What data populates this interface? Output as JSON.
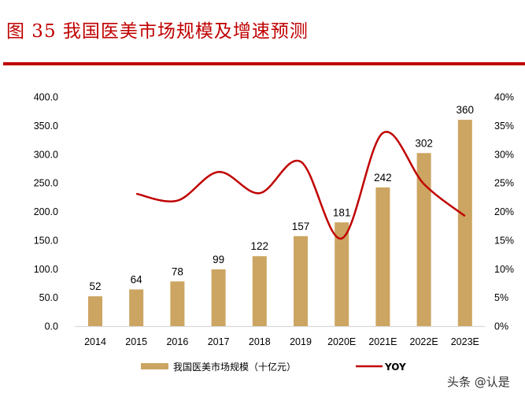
{
  "title": "图 35  我国医美市场规模及增速预测",
  "watermark": "头条 @认是",
  "chart_data": {
    "type": "bar+line",
    "categories": [
      "2014",
      "2015",
      "2016",
      "2017",
      "2018",
      "2019",
      "2020E",
      "2021E",
      "2022E",
      "2023E"
    ],
    "series": [
      {
        "name": "我国医美市场规模（十亿元）",
        "type": "bar",
        "axis": "left",
        "color": "#cca562",
        "values": [
          52,
          64,
          78,
          99,
          122,
          157,
          181,
          242,
          302,
          360
        ],
        "labels": [
          "52",
          "64",
          "78",
          "99",
          "122",
          "157",
          "181",
          "242",
          "302",
          "360"
        ]
      },
      {
        "name": "YOY",
        "type": "line",
        "axis": "right",
        "color": "#c00000",
        "values": [
          null,
          23.1,
          21.9,
          26.9,
          23.2,
          28.7,
          15.3,
          33.7,
          24.8,
          19.2
        ]
      }
    ],
    "left_axis": {
      "range": [
        0,
        400
      ],
      "ticks": [
        "0.0",
        "50.0",
        "100.0",
        "150.0",
        "200.0",
        "250.0",
        "300.0",
        "350.0",
        "400.0"
      ]
    },
    "right_axis": {
      "range": [
        0,
        40
      ],
      "unit": "%",
      "ticks": [
        "0%",
        "5%",
        "10%",
        "15%",
        "20%",
        "25%",
        "30%",
        "35%",
        "40%"
      ]
    },
    "grid": false,
    "legend_position": "bottom"
  }
}
